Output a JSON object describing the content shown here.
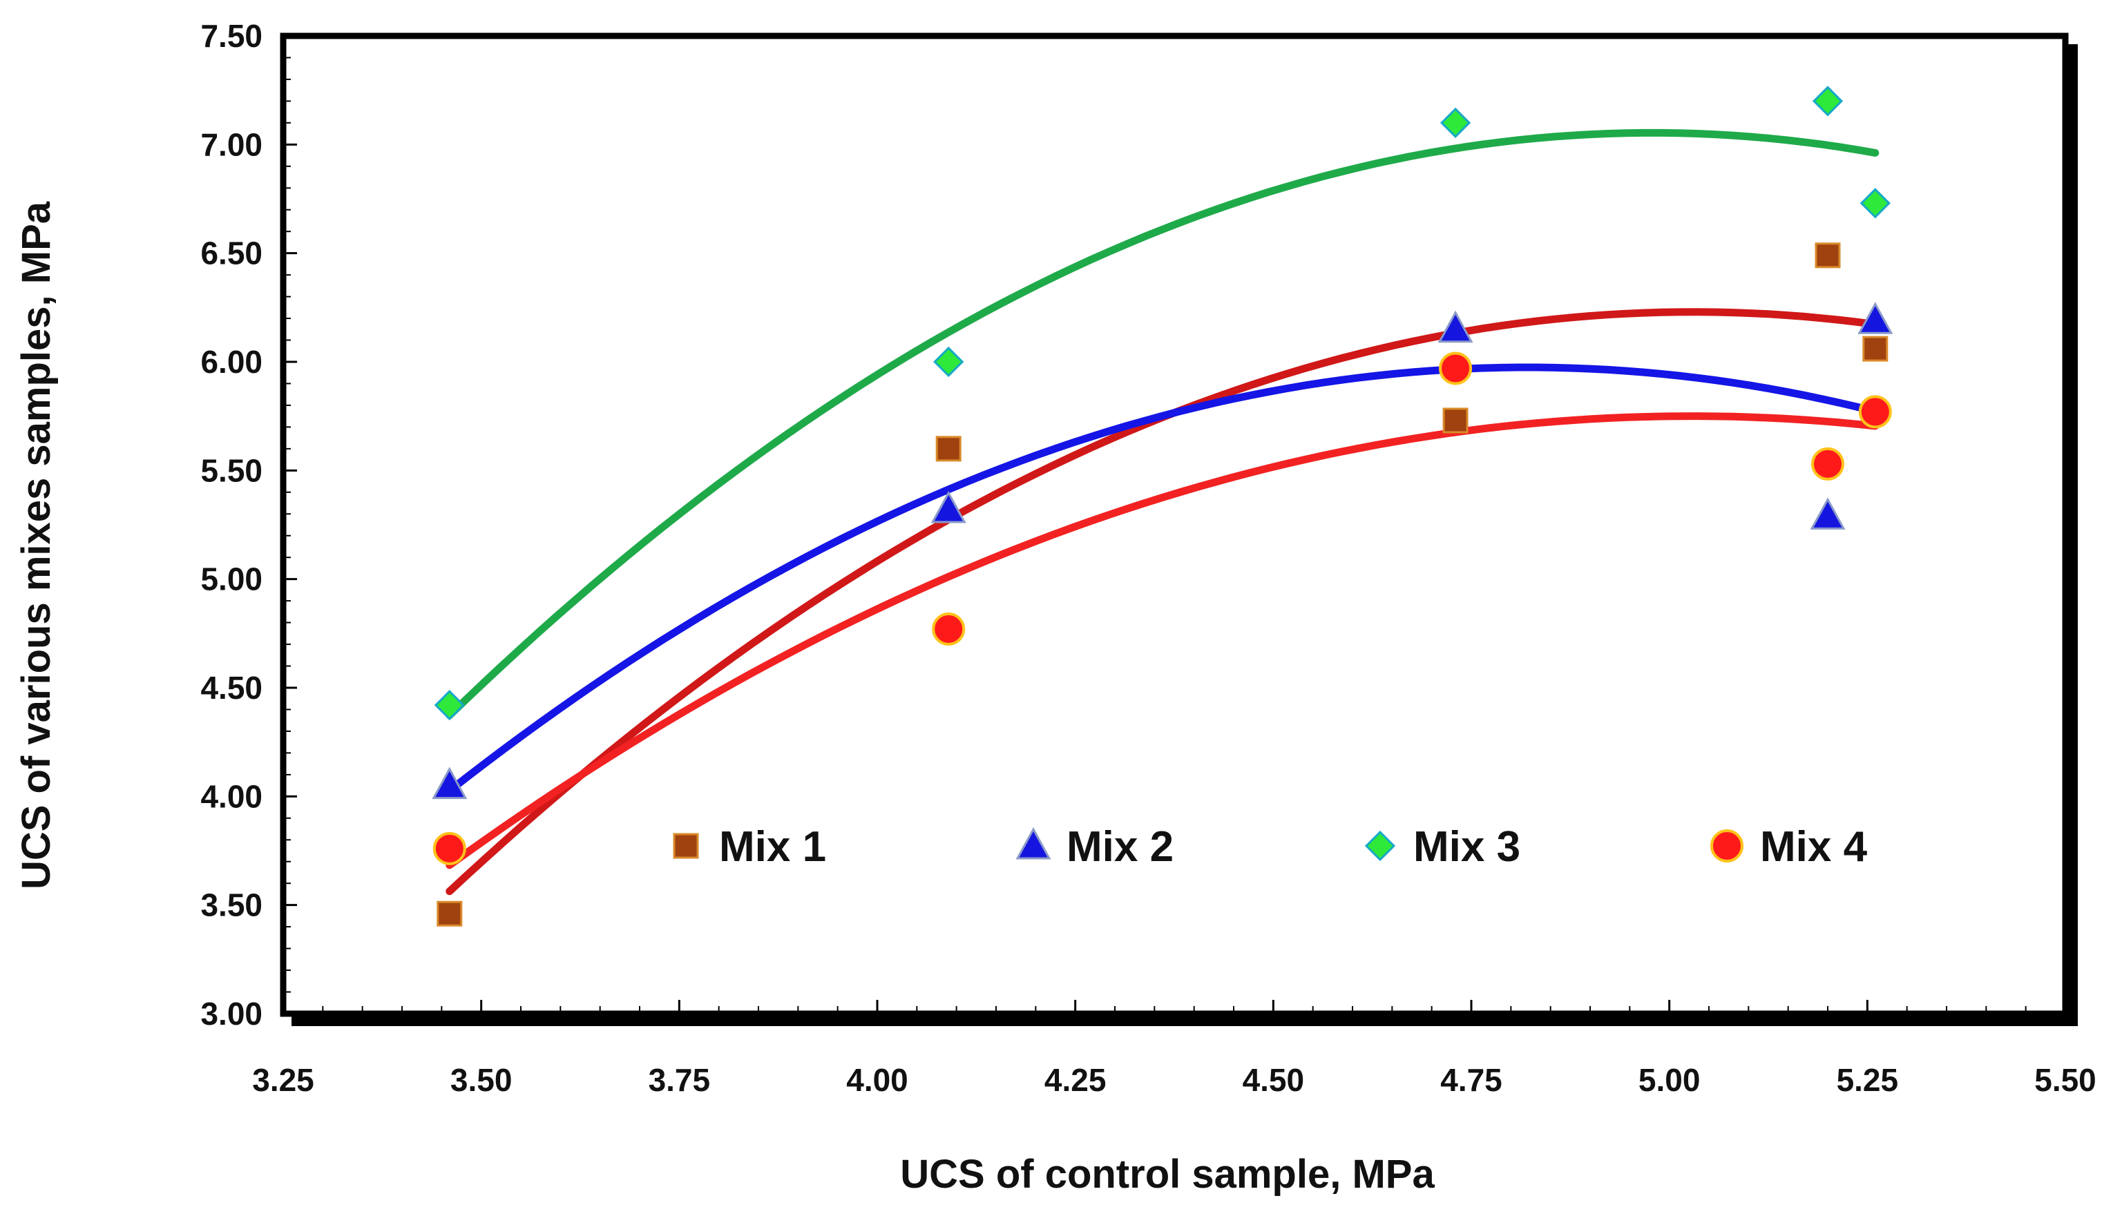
{
  "chart_data": {
    "type": "scatter",
    "xlabel": "UCS of control sample, MPa",
    "ylabel": "UCS of various mixes samples, MPa",
    "xlim": [
      3.25,
      5.5
    ],
    "ylim": [
      3.0,
      7.5
    ],
    "x_ticks": [
      "3.25",
      "3.50",
      "3.75",
      "4.00",
      "4.25",
      "4.50",
      "4.75",
      "5.00",
      "5.25",
      "5.50"
    ],
    "y_ticks": [
      "3.00",
      "3.50",
      "4.00",
      "4.50",
      "5.00",
      "5.50",
      "6.00",
      "6.50",
      "7.00",
      "7.50"
    ],
    "grid": false,
    "legend_position": "inside-bottom",
    "trendline": "polynomial order 2",
    "series": [
      {
        "name": "Mix 1",
        "marker": "square",
        "fill": "#a0420f",
        "stroke": "#d98a2a",
        "trend_color": "#d01818",
        "points": [
          [
            3.46,
            3.46
          ],
          [
            4.09,
            5.6
          ],
          [
            4.73,
            5.73
          ],
          [
            5.2,
            6.49
          ],
          [
            5.26,
            6.06
          ]
        ]
      },
      {
        "name": "Mix 2",
        "marker": "triangle",
        "fill": "#1515e0",
        "stroke": "#8a9ac8",
        "trend_color": "#1515e6",
        "points": [
          [
            3.46,
            4.05
          ],
          [
            4.09,
            5.32
          ],
          [
            4.73,
            6.15
          ],
          [
            5.2,
            5.29
          ],
          [
            5.26,
            6.19
          ]
        ]
      },
      {
        "name": "Mix 3",
        "marker": "diamond",
        "fill": "#2ee83a",
        "stroke": "#17a8c8",
        "trend_color": "#1faa4a",
        "points": [
          [
            3.46,
            4.42
          ],
          [
            4.09,
            6.0
          ],
          [
            4.73,
            7.1
          ],
          [
            5.2,
            7.2
          ],
          [
            5.26,
            6.73
          ]
        ]
      },
      {
        "name": "Mix 4",
        "marker": "circle",
        "fill": "#ff1a1a",
        "stroke": "#ffc21a",
        "trend_color": "#f22222",
        "points": [
          [
            3.46,
            3.76
          ],
          [
            4.09,
            4.77
          ],
          [
            4.73,
            5.97
          ],
          [
            5.2,
            5.53
          ],
          [
            5.26,
            5.77
          ]
        ]
      }
    ]
  }
}
